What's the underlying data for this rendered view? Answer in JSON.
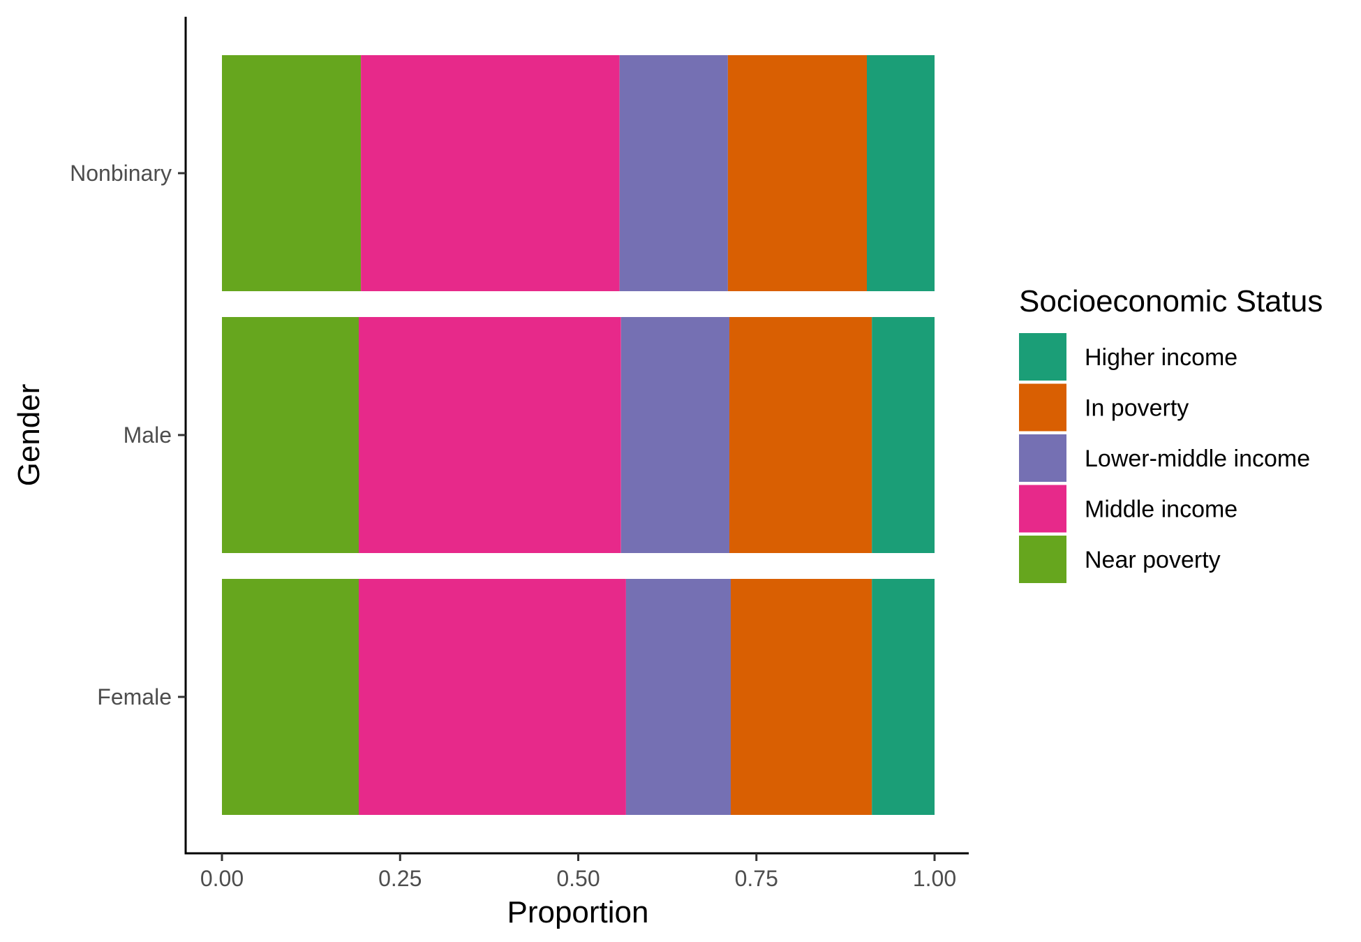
{
  "chart_data": {
    "type": "bar",
    "orientation": "horizontal",
    "stacked": true,
    "xlabel": "Proportion",
    "ylabel": "Gender",
    "xlim": [
      0,
      1
    ],
    "x_ticks": [
      "0.00",
      "0.25",
      "0.50",
      "0.75",
      "1.00"
    ],
    "categories": [
      "Nonbinary",
      "Male",
      "Female"
    ],
    "series": [
      {
        "name": "Near poverty",
        "color": "#66a61e",
        "values": [
          0.195,
          0.192,
          0.192
        ]
      },
      {
        "name": "Middle income",
        "color": "#e7298a",
        "values": [
          0.363,
          0.368,
          0.375
        ]
      },
      {
        "name": "Lower-middle income",
        "color": "#7570b3",
        "values": [
          0.152,
          0.152,
          0.147
        ]
      },
      {
        "name": "In poverty",
        "color": "#d95f02",
        "values": [
          0.195,
          0.2,
          0.198
        ]
      },
      {
        "name": "Higher income",
        "color": "#1b9e77",
        "values": [
          0.095,
          0.088,
          0.088
        ]
      }
    ],
    "legend": {
      "title": "Socioeconomic Status",
      "position": "right",
      "entries": [
        "Higher income",
        "In poverty",
        "Lower-middle income",
        "Middle income",
        "Near poverty"
      ]
    },
    "grid": false
  }
}
